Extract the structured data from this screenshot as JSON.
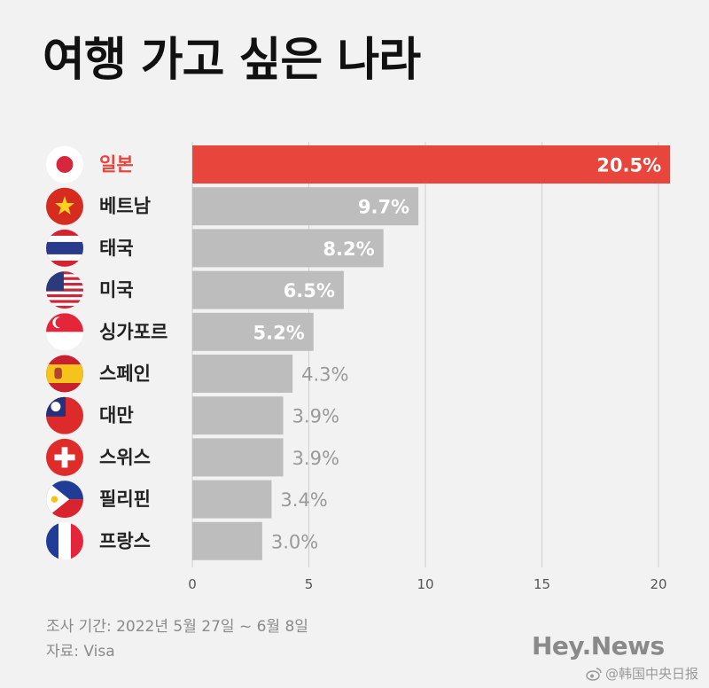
{
  "chart_data": {
    "type": "bar",
    "orientation": "horizontal",
    "title": "여행 가고 싶은 나라",
    "categories": [
      "일본",
      "베트남",
      "태국",
      "미국",
      "싱가포르",
      "스페인",
      "대만",
      "스위스",
      "필리핀",
      "프랑스"
    ],
    "values": [
      20.5,
      9.7,
      8.2,
      6.5,
      5.2,
      4.3,
      3.9,
      3.9,
      3.4,
      3.0
    ],
    "value_labels": [
      "20.5%",
      "9.7%",
      "8.2%",
      "6.5%",
      "5.2%",
      "4.3%",
      "3.9%",
      "3.9%",
      "3.4%",
      "3.0%"
    ],
    "flag_icons": [
      "japan-flag-icon",
      "vietnam-flag-icon",
      "thailand-flag-icon",
      "usa-flag-icon",
      "singapore-flag-icon",
      "spain-flag-icon",
      "taiwan-flag-icon",
      "switzerland-flag-icon",
      "philippines-flag-icon",
      "france-flag-icon"
    ],
    "xlim": [
      0,
      20
    ],
    "xticks": [
      0,
      5,
      10,
      15,
      20
    ],
    "highlight_index": 0,
    "colors": {
      "highlight": "#e8453c",
      "bar": "#bdbdbd",
      "background": "#f2f2f2"
    },
    "grid": true
  },
  "footer": {
    "period": "조사 기간: 2022년 5월 27일 ~ 6월 8일",
    "source": "자료: Visa",
    "brand": "Hey.News",
    "watermark": "@韩国中央日报"
  }
}
